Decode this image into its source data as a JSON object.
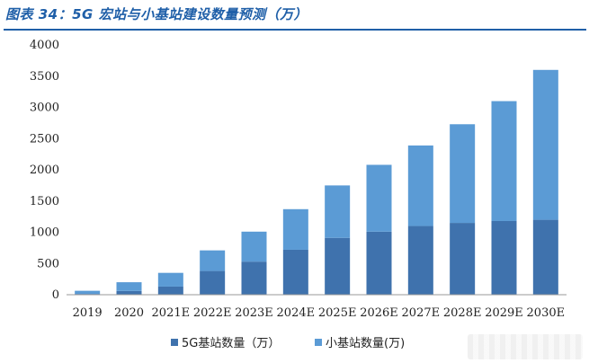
{
  "header": {
    "title": "图表 34：5G 宏站与小基站建设数量预测（万）"
  },
  "chart_data": {
    "type": "bar",
    "stacked": true,
    "categories": [
      "2019",
      "2020",
      "2021E",
      "2022E",
      "2023E",
      "2024E",
      "2025E",
      "2026E",
      "2027E",
      "2028E",
      "2029E",
      "2030E"
    ],
    "series": [
      {
        "name": "5G基站数量（万）",
        "color": "#3f72ad",
        "values": [
          13,
          60,
          130,
          380,
          530,
          720,
          910,
          1010,
          1100,
          1150,
          1180,
          1200
        ]
      },
      {
        "name": "小基站数量(万)",
        "color": "#5b9bd5",
        "values": [
          50,
          140,
          220,
          330,
          480,
          650,
          840,
          1070,
          1290,
          1580,
          1920,
          2400
        ]
      }
    ],
    "yticks": [
      "0",
      "500",
      "1000",
      "1500",
      "2000",
      "2500",
      "3000",
      "3500",
      "4000"
    ],
    "ylim": [
      0,
      4000
    ],
    "grid": false,
    "legend": "bottom"
  }
}
